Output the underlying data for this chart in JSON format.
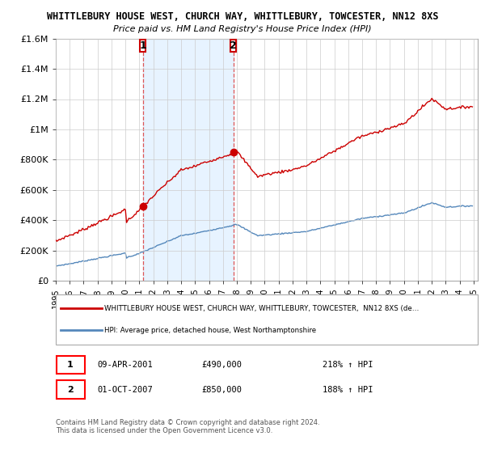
{
  "title": "WHITTLEBURY HOUSE WEST, CHURCH WAY, WHITTLEBURY, TOWCESTER, NN12 8XS",
  "subtitle": "Price paid vs. HM Land Registry's House Price Index (HPI)",
  "legend_label_red": "WHITTLEBURY HOUSE WEST, CHURCH WAY, WHITTLEBURY, TOWCESTER,  NN12 8XS (de…",
  "legend_label_blue": "HPI: Average price, detached house, West Northamptonshire",
  "sale1_date": "09-APR-2001",
  "sale1_price": "£490,000",
  "sale1_hpi": "218% ↑ HPI",
  "sale2_date": "01-OCT-2007",
  "sale2_price": "£850,000",
  "sale2_hpi": "188% ↑ HPI",
  "footer": "Contains HM Land Registry data © Crown copyright and database right 2024.\nThis data is licensed under the Open Government Licence v3.0.",
  "ylim": [
    0,
    1600000
  ],
  "red_color": "#cc0000",
  "blue_color": "#5588bb",
  "shade_color": "#ddeeff",
  "dashed_color": "#dd4444",
  "background_plot": "#ffffff",
  "background_fig": "#ffffff",
  "grid_color": "#cccccc",
  "sale1_year": 2001.25,
  "sale2_year": 2007.75,
  "sale1_price_val": 490000,
  "sale2_price_val": 850000,
  "xlim_left": 1995,
  "xlim_right": 2025.3
}
